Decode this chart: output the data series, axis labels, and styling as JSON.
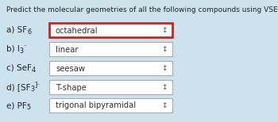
{
  "title": "Predict the molecular geometries of all the following compounds using VSEPR:",
  "background_color": "#cce3ee",
  "rows": [
    {
      "prefix": "a) SF",
      "sub1": "6",
      "suffix": "",
      "answer": "octahedral",
      "highlighted": true
    },
    {
      "prefix": "b) I",
      "sub1": "3",
      "suffix": "⁻",
      "answer": "linear",
      "highlighted": false
    },
    {
      "prefix": "c) SeF",
      "sub1": "4",
      "suffix": "",
      "answer": "seesaw",
      "highlighted": false
    },
    {
      "prefix": "d) [SF",
      "sub1": "3",
      "suffix": "]⁻",
      "answer": "T-shape",
      "highlighted": false
    },
    {
      "prefix": "e) PF",
      "sub1": "5",
      "suffix": "",
      "answer": "trigonal bipyramidal",
      "highlighted": false
    }
  ],
  "highlight_color": "#cc2222",
  "border_color": "#aaaaaa",
  "box_fill": "#ffffff",
  "title_fontsize": 6.5,
  "label_fontsize": 7.5,
  "sub_fontsize": 5.8,
  "answer_fontsize": 7.2,
  "arrow_fontsize": 6.5
}
